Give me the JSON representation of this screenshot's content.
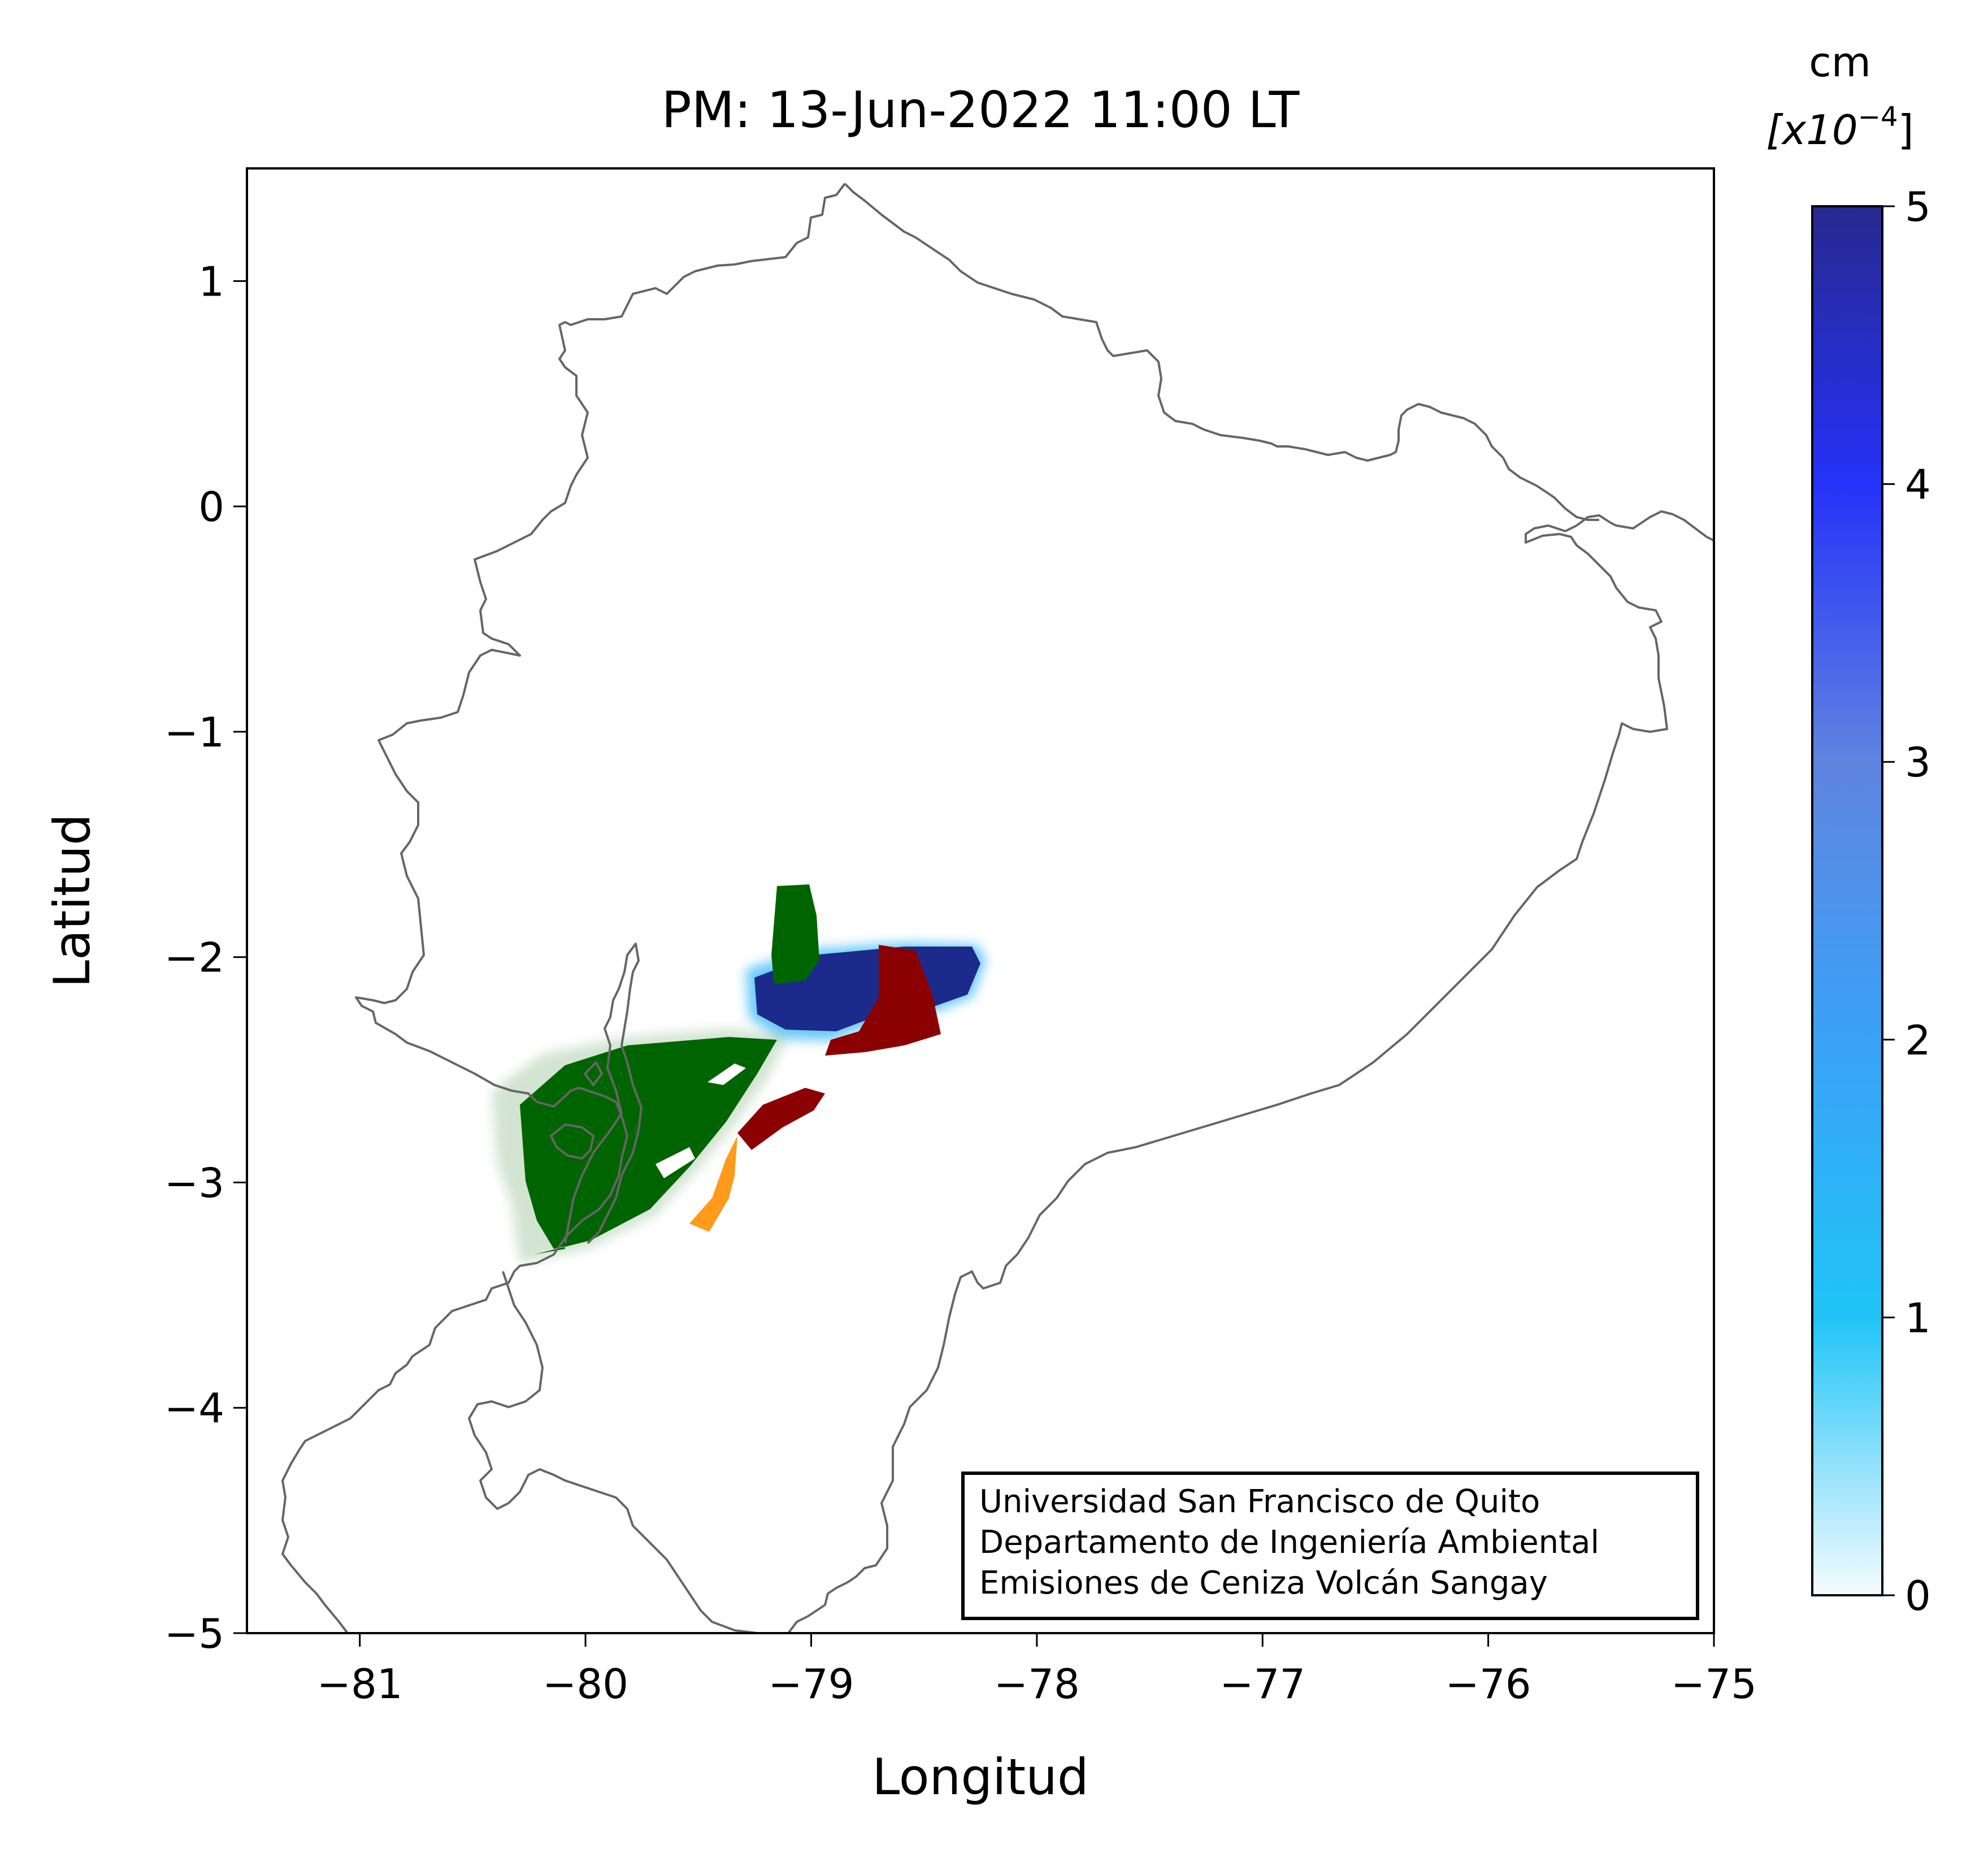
{
  "title": "PM: 13-Jun-2022 11:00 LT",
  "chart_data": {
    "type": "heatmap",
    "title": "PM: 13-Jun-2022 11:00 LT",
    "xlabel": "Longitud",
    "ylabel": "Latitud",
    "xlim": [
      -81.5,
      -75
    ],
    "ylim": [
      -5,
      1.5
    ],
    "xticks": [
      -81,
      -80,
      -79,
      -78,
      -77,
      -76,
      -75
    ],
    "xtick_labels": [
      "−81",
      "−80",
      "−79",
      "−78",
      "−77",
      "−76",
      "−75"
    ],
    "yticks": [
      1,
      0,
      -1,
      -2,
      -3,
      -4,
      -5
    ],
    "ytick_labels": [
      "1",
      "0",
      "−1",
      "−2",
      "−3",
      "−4",
      "−5"
    ],
    "colorbar": {
      "label_line1": "cm",
      "label_line2_prefix": "[x10",
      "label_exponent": "−4",
      "label_suffix": "]",
      "range": [
        0,
        5
      ],
      "ticks": [
        "0",
        "1",
        "2",
        "3",
        "4",
        "5"
      ],
      "colors": [
        "#f5fbff",
        "#20c4f7",
        "#3aa2f7",
        "#5f84e0",
        "#2632f8",
        "#27298f"
      ]
    },
    "grid": false,
    "plumes": [
      {
        "name": "green-region",
        "color": "#006400"
      },
      {
        "name": "blue-region",
        "color": "#1c2a8c"
      },
      {
        "name": "darkred-region",
        "color": "#8b0000"
      },
      {
        "name": "orange-region",
        "color": "#ff9a1a"
      }
    ]
  },
  "credit_box": {
    "line1": "Universidad San Francisco de Quito",
    "line2": "Departamento de Ingeniería Ambiental",
    "line3": "Emisiones de Ceniza Volcán Sangay"
  },
  "colors": {
    "coastline": "#666666",
    "axes": "#000000"
  }
}
